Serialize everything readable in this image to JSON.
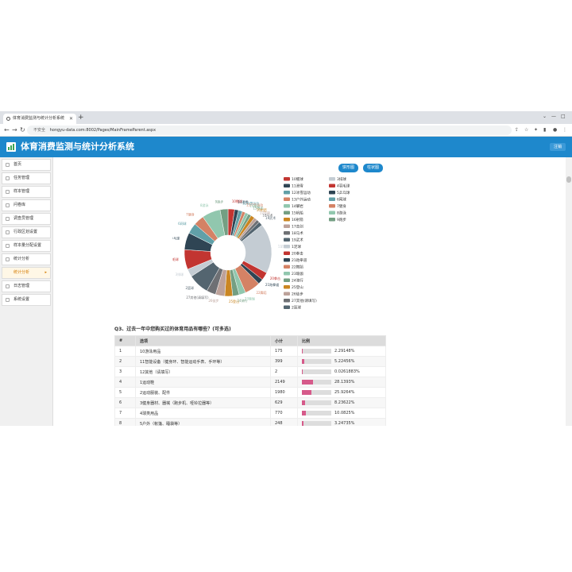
{
  "browser": {
    "tab_title": "体育消费监测与统计分析系统",
    "url_security": "不安全",
    "url": "hongyu-data.com:8002/Pages/MainFrameParent.aspx"
  },
  "app": {
    "title": "体育消费监测与统计分析系统",
    "logout": "注销"
  },
  "sidebar": {
    "items": [
      {
        "label": "首页"
      },
      {
        "label": "任务管理"
      },
      {
        "label": "样本管理"
      },
      {
        "label": "问卷库"
      },
      {
        "label": "调查员管理"
      },
      {
        "label": "行政区划设置"
      },
      {
        "label": "样本量分配设置"
      },
      {
        "label": "统计分析"
      },
      {
        "label": "统计分析"
      },
      {
        "label": "日志管理"
      },
      {
        "label": "系统设置"
      }
    ]
  },
  "chart_buttons": {
    "pie": "饼形图",
    "bar": "柱状图"
  },
  "colors": {
    "header": "#1e88cc",
    "bar_fill": "#d65a8a"
  },
  "chart_data": {
    "type": "pie",
    "categories": [
      "10毽球",
      "11滑雪",
      "12冰雪运动",
      "13户外运动",
      "14攀岩",
      "15帆船",
      "16射箭",
      "17击剑",
      "18马术",
      "19武术",
      "1足球",
      "20拳击",
      "21跆拳道",
      "22舞蹈",
      "23瑜伽",
      "24骑行",
      "25登山",
      "26徒步",
      "27其他(请填写)",
      "2篮球",
      "3排球",
      "4羽毛球",
      "5乒乓球",
      "6网球",
      "7健身",
      "8游泳",
      "9跑步"
    ],
    "values": [
      2.5,
      1.5,
      1.5,
      1.2,
      1.2,
      1.2,
      1.5,
      1.2,
      1.2,
      1.5,
      19,
      3,
      2,
      6,
      2.5,
      2.5,
      3,
      3.5,
      3.5,
      8,
      3,
      7.5,
      6.5,
      4,
      4,
      7,
      3
    ],
    "colors": [
      "#c23531",
      "#2f4554",
      "#61a0a8",
      "#d48265",
      "#91c7ae",
      "#749f83",
      "#ca8622",
      "#bda29a",
      "#6e7074",
      "#546570",
      "#c4ccd3",
      "#c23531",
      "#2f4554",
      "#d48265",
      "#91c7ae",
      "#749f83",
      "#ca8622",
      "#bda29a",
      "#6e7074",
      "#546570",
      "#c4ccd3",
      "#c23531",
      "#2f4554",
      "#61a0a8",
      "#d48265",
      "#91c7ae",
      "#749f83"
    ],
    "legend": [
      "10毽球",
      "11滑雪",
      "12冰雪运动",
      "13户外运动",
      "14攀岩",
      "15帆船",
      "16射箭",
      "17击剑",
      "18马术",
      "19武术",
      "1足球",
      "20拳击",
      "21跆拳道",
      "22舞蹈",
      "23瑜伽",
      "24骑行",
      "25登山",
      "26徒步",
      "27其他(请填写)",
      "2篮球",
      "3排球",
      "4羽毛球",
      "5乒乓球",
      "6网球",
      "7健身",
      "8游泳",
      "9跑步"
    ],
    "legend_placement": "right"
  },
  "q3": {
    "title": "Q3、过去一年中您购买过的体育用品有哪些？(可多选)",
    "headers": [
      "#",
      "选项",
      "小计",
      "比例"
    ],
    "rows": [
      {
        "num": "1",
        "option": "10游泳用品",
        "count": "175",
        "pct": "2.29148%",
        "frac": 0.0229
      },
      {
        "num": "2",
        "option": "11智能设备（健身环、智能运动手表、手环等）",
        "count": "399",
        "pct": "5.22456%",
        "frac": 0.0522
      },
      {
        "num": "3",
        "option": "12其他（请填写）",
        "count": "2",
        "pct": "0.0261883%",
        "frac": 0.0003
      },
      {
        "num": "4",
        "option": "1运动鞋",
        "count": "2149",
        "pct": "28.1393%",
        "frac": 0.2814
      },
      {
        "num": "5",
        "option": "2运动服装、配件",
        "count": "1980",
        "pct": "25.9264%",
        "frac": 0.2593
      },
      {
        "num": "6",
        "option": "3健身器材、器械（跑步机、哑铃拉器等）",
        "count": "629",
        "pct": "8.23622%",
        "frac": 0.0824
      },
      {
        "num": "7",
        "option": "4球类用品",
        "count": "770",
        "pct": "10.0825%",
        "frac": 0.1008
      },
      {
        "num": "8",
        "option": "5户外（帐篷、睡袋等）",
        "count": "248",
        "pct": "3.24735%",
        "frac": 0.0325
      }
    ]
  }
}
